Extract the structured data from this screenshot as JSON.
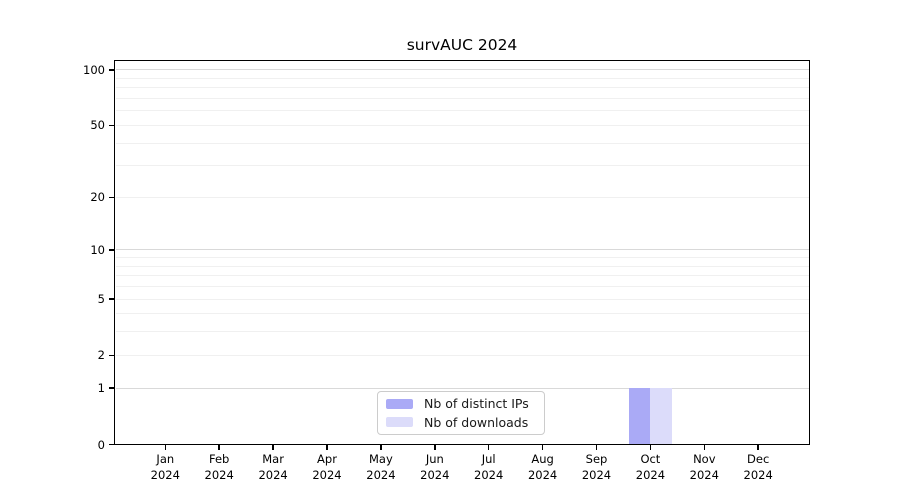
{
  "title": "survAUC 2024",
  "chart_data": {
    "type": "bar",
    "title": "survAUC 2024",
    "categories": [
      "Jan 2024",
      "Feb 2024",
      "Mar 2024",
      "Apr 2024",
      "May 2024",
      "Jun 2024",
      "Jul 2024",
      "Aug 2024",
      "Sep 2024",
      "Oct 2024",
      "Nov 2024",
      "Dec 2024"
    ],
    "series": [
      {
        "name": "Nb of distinct IPs",
        "color": "#aaaaf6",
        "values": [
          0,
          0,
          0,
          0,
          0,
          0,
          0,
          0,
          0,
          1,
          0,
          0
        ]
      },
      {
        "name": "Nb of downloads",
        "color": "#dcdcfa",
        "values": [
          0,
          0,
          0,
          0,
          0,
          0,
          0,
          0,
          0,
          1,
          0,
          0
        ]
      }
    ],
    "xlabel": "",
    "ylabel": "",
    "y_scale": "log1p",
    "y_tick_labels": [
      "0",
      "1",
      "2",
      "5",
      "10",
      "20",
      "50",
      "100"
    ],
    "y_tick_values": [
      0,
      1,
      2,
      5,
      10,
      20,
      50,
      100
    ],
    "y_minor_gridlines": [
      2,
      3,
      4,
      5,
      6,
      7,
      8,
      9,
      20,
      30,
      40,
      50,
      60,
      70,
      80,
      90
    ],
    "y_major_gridlines": [
      1,
      10,
      100
    ],
    "ylim": [
      0,
      113
    ],
    "grid": true,
    "legend_position": "lower center"
  },
  "legend": {
    "items": [
      {
        "label": "Nb of distinct IPs",
        "color": "#aaaaf6"
      },
      {
        "label": "Nb of downloads",
        "color": "#dcdcfa"
      }
    ]
  },
  "colors": {
    "bar_distinct_ips": "#aaaaf6",
    "bar_downloads": "#dcdcfa",
    "grid_minor": "#f0f0f0",
    "grid_major": "#d9d9d9",
    "axis": "#000000",
    "legend_border": "#cccccc"
  }
}
